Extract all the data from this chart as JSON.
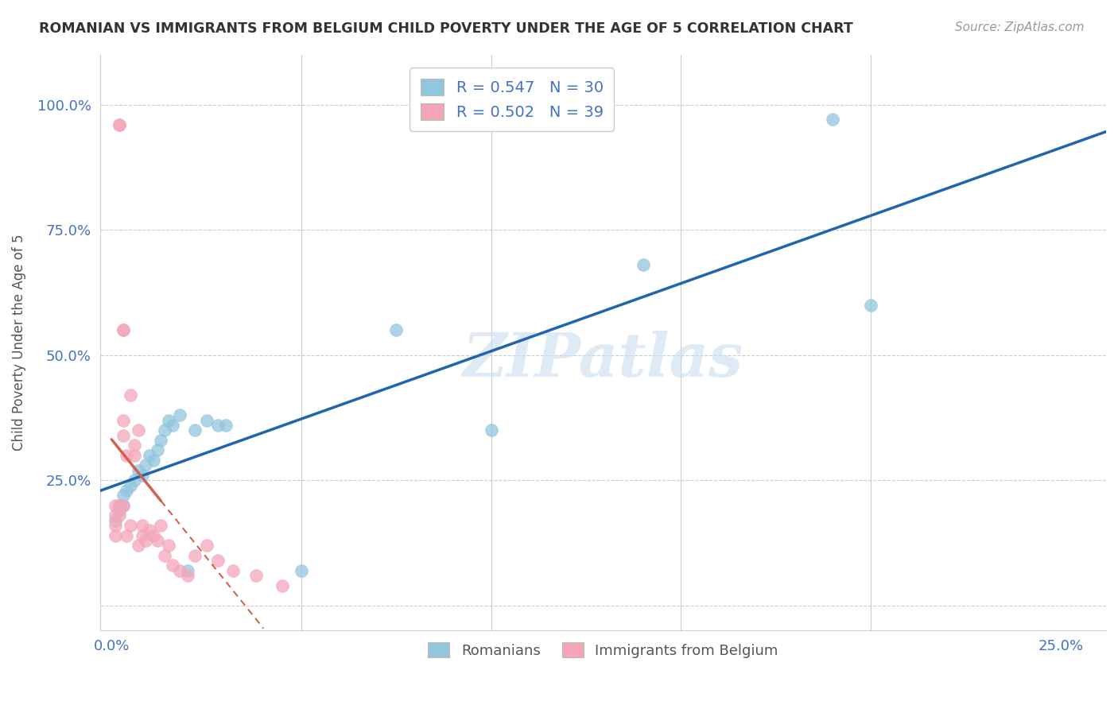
{
  "title": "ROMANIAN VS IMMIGRANTS FROM BELGIUM CHILD POVERTY UNDER THE AGE OF 5 CORRELATION CHART",
  "source": "Source: ZipAtlas.com",
  "ylabel": "Child Poverty Under the Age of 5",
  "xlim": [
    -0.003,
    0.262
  ],
  "ylim": [
    -0.05,
    1.1
  ],
  "blue_R": 0.547,
  "blue_N": 30,
  "pink_R": 0.502,
  "pink_N": 39,
  "blue_color": "#92c5de",
  "pink_color": "#f4a6b8",
  "blue_line_color": "#2166ac",
  "pink_line_color": "#d6604d",
  "legend_label_blue": "Romanians",
  "legend_label_pink": "Immigrants from Belgium",
  "watermark": "ZIPatlas",
  "blue_x": [
    0.001,
    0.002,
    0.002,
    0.003,
    0.003,
    0.004,
    0.005,
    0.006,
    0.007,
    0.008,
    0.009,
    0.01,
    0.011,
    0.012,
    0.013,
    0.014,
    0.015,
    0.016,
    0.018,
    0.02,
    0.022,
    0.025,
    0.028,
    0.03,
    0.05,
    0.075,
    0.1,
    0.14,
    0.19,
    0.2
  ],
  "blue_y": [
    0.17,
    0.19,
    0.2,
    0.2,
    0.22,
    0.23,
    0.24,
    0.25,
    0.27,
    0.26,
    0.28,
    0.3,
    0.29,
    0.31,
    0.33,
    0.35,
    0.37,
    0.36,
    0.38,
    0.07,
    0.35,
    0.37,
    0.36,
    0.36,
    0.07,
    0.55,
    0.35,
    0.68,
    0.97,
    0.6
  ],
  "pink_x": [
    0.001,
    0.001,
    0.001,
    0.001,
    0.002,
    0.002,
    0.002,
    0.002,
    0.003,
    0.003,
    0.003,
    0.003,
    0.003,
    0.004,
    0.004,
    0.005,
    0.005,
    0.006,
    0.006,
    0.007,
    0.007,
    0.008,
    0.008,
    0.009,
    0.01,
    0.011,
    0.012,
    0.013,
    0.014,
    0.015,
    0.016,
    0.018,
    0.02,
    0.022,
    0.025,
    0.028,
    0.032,
    0.038,
    0.045
  ],
  "pink_y": [
    0.14,
    0.16,
    0.18,
    0.2,
    0.96,
    0.96,
    0.18,
    0.2,
    0.34,
    0.37,
    0.55,
    0.55,
    0.2,
    0.3,
    0.14,
    0.42,
    0.16,
    0.3,
    0.32,
    0.35,
    0.12,
    0.14,
    0.16,
    0.13,
    0.15,
    0.14,
    0.13,
    0.16,
    0.1,
    0.12,
    0.08,
    0.07,
    0.06,
    0.1,
    0.12,
    0.09,
    0.07,
    0.06,
    0.04
  ]
}
